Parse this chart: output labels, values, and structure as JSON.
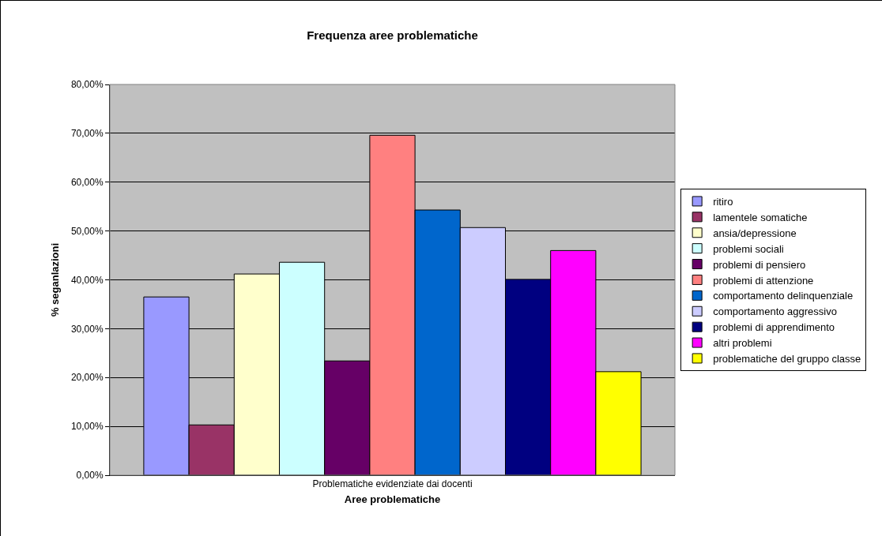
{
  "chart_data": {
    "type": "bar",
    "title": "Frequenza aree problematiche",
    "xlabel": "Aree problematiche",
    "ylabel": "% seganlazioni",
    "categories": [
      "Problematiche evidenziate dai docenti"
    ],
    "series": [
      {
        "name": "ritiro",
        "color": "#9999ff",
        "values": [
          36.5
        ]
      },
      {
        "name": "lamentele somatiche",
        "color": "#993366",
        "values": [
          10.3
        ]
      },
      {
        "name": "ansia/depressione",
        "color": "#ffffcc",
        "values": [
          41.2
        ]
      },
      {
        "name": "problemi sociali",
        "color": "#ccffff",
        "values": [
          43.6
        ]
      },
      {
        "name": "problemi di pensiero",
        "color": "#660066",
        "values": [
          23.4
        ]
      },
      {
        "name": "problemi di attenzione",
        "color": "#ff8080",
        "values": [
          69.6
        ]
      },
      {
        "name": "comportamento delinquenziale",
        "color": "#0066cc",
        "values": [
          54.3
        ]
      },
      {
        "name": "comportamento aggressivo",
        "color": "#ccccff",
        "values": [
          50.7
        ]
      },
      {
        "name": "problemi di apprendimento",
        "color": "#000080",
        "values": [
          40.1
        ]
      },
      {
        "name": "altri problemi",
        "color": "#ff00ff",
        "values": [
          46.0
        ]
      },
      {
        "name": "problematiche del gruppo classe",
        "color": "#ffff00",
        "values": [
          21.2
        ]
      }
    ],
    "ylim": [
      0,
      80
    ],
    "yticks": [
      {
        "value": 0,
        "label": "0,00%"
      },
      {
        "value": 10,
        "label": "10,00%"
      },
      {
        "value": 20,
        "label": "20,00%"
      },
      {
        "value": 30,
        "label": "30,00%"
      },
      {
        "value": 40,
        "label": "40,00%"
      },
      {
        "value": 50,
        "label": "50,00%"
      },
      {
        "value": 60,
        "label": "60,00%"
      },
      {
        "value": 70,
        "label": "70,00%"
      },
      {
        "value": 80,
        "label": "80,00%"
      }
    ],
    "grid": "y",
    "legend": "right"
  }
}
